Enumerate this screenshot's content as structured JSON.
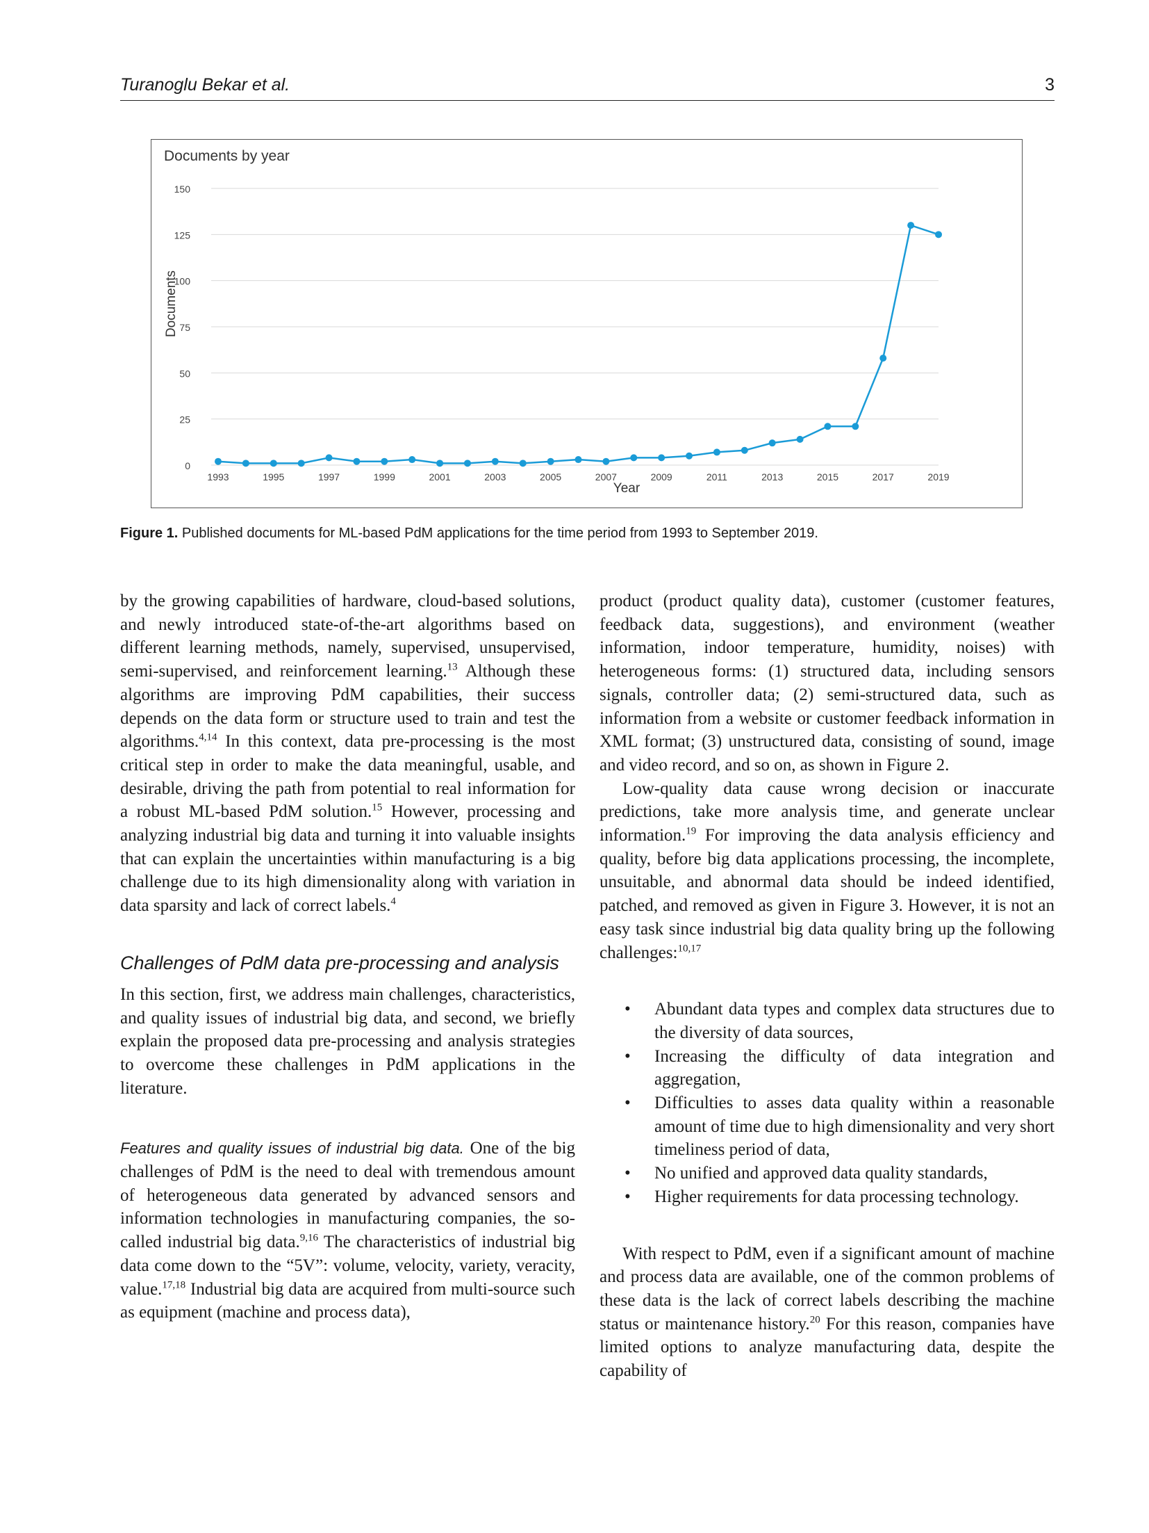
{
  "header": {
    "authors": "Turanoglu Bekar et al.",
    "page_number": "3"
  },
  "figure": {
    "caption_label": "Figure 1.",
    "caption_text": "Published documents for ML-based PdM applications for the time period from 1993 to September 2019."
  },
  "chart_data": {
    "type": "line",
    "title": "Documents by year",
    "xlabel": "Year",
    "ylabel": "Documents",
    "ylim": [
      0,
      150
    ],
    "yticks": [
      0,
      25,
      50,
      75,
      100,
      125,
      150
    ],
    "xticks": [
      1993,
      1995,
      1997,
      1999,
      2001,
      2003,
      2005,
      2007,
      2009,
      2011,
      2013,
      2015,
      2017,
      2019
    ],
    "x": [
      1993,
      1994,
      1995,
      1996,
      1997,
      1998,
      1999,
      2000,
      2001,
      2002,
      2003,
      2004,
      2005,
      2006,
      2007,
      2008,
      2009,
      2010,
      2011,
      2012,
      2013,
      2014,
      2015,
      2016,
      2017,
      2018,
      2019
    ],
    "series": [
      {
        "values": [
          2,
          1,
          1,
          1,
          4,
          2,
          2,
          3,
          1,
          1,
          2,
          1,
          2,
          3,
          2,
          4,
          4,
          5,
          7,
          8,
          12,
          14,
          21,
          21,
          58,
          130,
          125
        ]
      }
    ],
    "grid": true,
    "line_color": "#1a9bd7"
  },
  "left_column": {
    "para1": [
      "by the growing capabilities of hardware, cloud-based solutions, and newly introduced state-of-the-art algorithms based on different learning methods, namely, supervised, unsupervised, semi-supervised, and reinforcement learning.",
      "13",
      " Although these algorithms are improving PdM capabilities, their success depends on the data form or structure used to train and test the algorithms.",
      "4,14",
      " In this context, data pre-processing is the most critical step in order to make the data meaningful, usable, and desirable, driving the path from potential to real information for a robust ML-based PdM solution.",
      "15",
      " However, processing and analyzing industrial big data and turning it into valuable insights that can explain the uncertainties within manufacturing is a big challenge due to its high dimensionality along with variation in data sparsity and lack of correct labels.",
      "4"
    ],
    "section_heading": "Challenges of PdM data pre-processing and analysis",
    "para2": "In this section, first, we address main challenges, characteristics, and quality issues of industrial big data, and second, we briefly explain the proposed data pre-processing and analysis strategies to overcome these challenges in PdM applications in the literature.",
    "subsection_heading": "Features and quality issues of industrial big data.",
    "para3": [
      " One of the big challenges of PdM is the need to deal with tremendous amount of heterogeneous data generated by advanced sensors and information technologies in manufacturing companies, the so-called industrial big data.",
      "9,16",
      " The characteristics of industrial big data come down to the “5V”: volume, velocity, variety, veracity, value.",
      "17,18",
      " Industrial big data are acquired from multi-source such as equipment (machine and process data),"
    ]
  },
  "right_column": {
    "para1": "product (product quality data), customer (customer features, feedback data, suggestions), and environment (weather information, indoor temperature, humidity, noises) with heterogeneous forms: (1) structured data, including sensors signals, controller data; (2) semi-structured data, such as information from a website or customer feedback information in XML format; (3) unstructured data, consisting of sound, image and video record, and so on, as shown in Figure 2.",
    "para2": [
      "Low-quality data cause wrong decision or inaccurate predictions, take more analysis time, and generate unclear information.",
      "19",
      " For improving the data analysis efficiency and quality, before big data applications processing, the incomplete, unsuitable, and abnormal data should be indeed identified, patched, and removed as given in Figure 3. However, it is not an easy task since industrial big data quality bring up the following challenges:",
      "10,17"
    ],
    "bullet_glyph": "•",
    "bullets": [
      "Abundant data types and complex data structures due to the diversity of data sources,",
      "Increasing the difficulty of data integration and aggregation,",
      "Difficulties to asses data quality within a reasonable amount of time due to high dimensionality and very short timeliness period of data,",
      "No unified and approved data quality standards,",
      "Higher requirements for data processing technology."
    ],
    "para3": [
      "With respect to PdM, even if a significant amount of machine and process data are available, one of the common problems of these data is the lack of correct labels describing the machine status or maintenance history.",
      "20",
      " For this reason, companies have limited options to analyze manufacturing data, despite the capability of"
    ]
  }
}
